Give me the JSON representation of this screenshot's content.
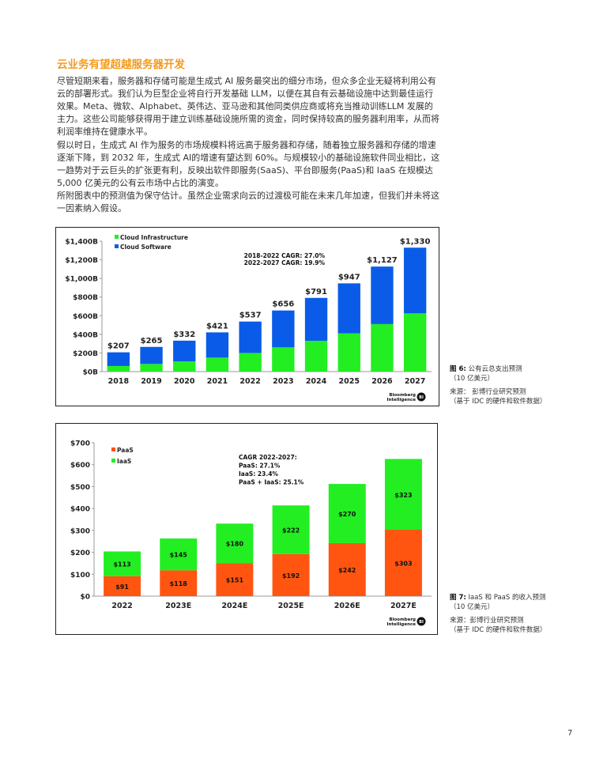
{
  "section_title": "云业务有望超越服务器开发",
  "paragraphs": [
    "尽管短期来看，服务器和存储可能是生成式 AI 服务最突出的细分市场，但众多企业无疑将利用公有云的部署形式。我们认为巨型企业将自行开发基础 LLM，以便在其自有云基础设施中达到最佳运行效果。Meta、微软、Alphabet、英伟达、亚马逊和其他同类供应商或将充当推动训练LLM  发展的主力。这些公司能够获得用于建立训练基础设施所需的资金，同时保持较高的服务器利用率，从而将利润率维持在健康水平。",
    "假以时日，生成式 AI 作为服务的市场规模料将远高于服务器和存储，随着独立服务器和存储的增速逐渐下降，到 2032 年，生成式 AI的增速有望达到 60%。与规模较小的基础设施软件同业相比，这一趋势对于云巨头的扩张更有利，反映出软件即服务(SaaS)、平台即服务(PaaS)和 IaaS 在规模达 5,000 亿美元的公有云市场中占比的演变。",
    "所附图表中的预测值为保守估计。虽然企业需求向云的过渡极可能在未来几年加速，但我们并未将这一因素纳入假设。"
  ],
  "figures": [
    {
      "label": "图 6:",
      "title": "公有云总支出预测",
      "unit": "（10 亿美元）",
      "source": "来源：  彭博行业研究预测",
      "source_note": "（基于 IDC 的硬件和软件数据）"
    },
    {
      "label": "图 7:",
      "title": "IaaS 和 PaaS 的收入预测",
      "unit": "（10 亿美元）",
      "source": "来源：彭博行业研究预测",
      "source_note": "（基于 IDC 的硬件和软件数据）"
    }
  ],
  "page_number": "7",
  "chart_data": [
    {
      "type": "bar",
      "stacked": true,
      "categories": [
        "2018",
        "2019",
        "2020",
        "2021",
        "2022",
        "2023",
        "2024",
        "2025",
        "2026",
        "2027"
      ],
      "series": [
        {
          "name": "Cloud Infrastructure",
          "color": "#22ee22",
          "values": [
            60,
            82,
            110,
            150,
            200,
            260,
            330,
            410,
            510,
            625
          ]
        },
        {
          "name": "Cloud Software",
          "color": "#0a5ce8",
          "values": [
            147,
            183,
            222,
            271,
            337,
            396,
            461,
            537,
            617,
            705
          ]
        }
      ],
      "total_labels": [
        "$207",
        "$265",
        "$332",
        "$421",
        "$537",
        "$656",
        "$791",
        "$947",
        "$1,127",
        "$1,330"
      ],
      "yticks": [
        "$0B",
        "$200B",
        "$400B",
        "$600B",
        "$800B",
        "$1,000B",
        "$1,200B",
        "$1,400B"
      ],
      "ylim": [
        0,
        1400
      ],
      "annotations": [
        "2018-2022 CAGR: 27.0%",
        "2022-2027 CAGR: 19.9%"
      ],
      "legend_position": "top-left",
      "logo_text": "Bloomberg Intelligence BI"
    },
    {
      "type": "bar",
      "stacked": true,
      "categories": [
        "2022",
        "2023E",
        "2024E",
        "2025E",
        "2026E",
        "2027E"
      ],
      "series": [
        {
          "name": "PaaS",
          "color": "#ff5511",
          "values": [
            91,
            118,
            151,
            192,
            242,
            303
          ]
        },
        {
          "name": "IaaS",
          "color": "#22ee22",
          "values": [
            113,
            145,
            180,
            222,
            270,
            323
          ]
        }
      ],
      "yticks": [
        "$0",
        "$100",
        "$200",
        "$300",
        "$400",
        "$500",
        "$600",
        "$700"
      ],
      "ylim": [
        0,
        700
      ],
      "annotations": [
        "CAGR 2022-2027:",
        "PaaS: 27.1%",
        "IaaS: 23.4%",
        "PaaS + IaaS: 25.1%"
      ],
      "legend_position": "top-left",
      "logo_text": "Bloomberg Intelligence BI"
    }
  ]
}
